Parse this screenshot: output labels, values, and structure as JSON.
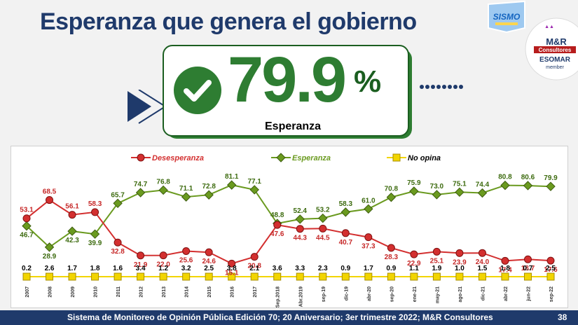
{
  "page": {
    "title": "Esperanza que genera el gobierno",
    "footer": "Sistema de Monitoreo de Opinión Pública Edición 70; 20 Aniversario; 3er trimestre 2022; M&R Consultores",
    "page_number": "38"
  },
  "hero": {
    "value": "79.9",
    "unit": "%",
    "label": "Esperanza"
  },
  "logos": {
    "sismo": "SISMO",
    "mr_line1": "M&R",
    "mr_line2": "Consultores",
    "esomar_line1": "ESOMAR",
    "esomar_line2": "member"
  },
  "colors": {
    "desesperanza": "#d32f2f",
    "esperanza": "#6a9a1f",
    "no_opina": "#f2d500",
    "navy": "#1f3a6b",
    "green": "#2e7d32"
  },
  "chart_data": {
    "type": "line",
    "categories": [
      "2007",
      "2008",
      "2009",
      "2010",
      "2011",
      "2012",
      "2013",
      "2014",
      "2015",
      "2016",
      "2017",
      "Sep.2018",
      "Abr.2019",
      "sep-19",
      "dic-19",
      "abr-20",
      "sep-20",
      "ene-21",
      "may-21",
      "ago-21",
      "dic-21",
      "abr-22",
      "jun-22",
      "sep-22"
    ],
    "series": [
      {
        "name": "Desesperanza",
        "color": "#d32f2f",
        "marker": "circle",
        "values": [
          53.1,
          68.5,
          56.1,
          58.3,
          32.8,
          21.9,
          22.0,
          25.6,
          24.6,
          15.1,
          20.8,
          47.6,
          44.3,
          44.5,
          40.7,
          37.3,
          28.3,
          22.9,
          25.1,
          23.9,
          24.0,
          17.4,
          18.7,
          17.6
        ]
      },
      {
        "name": "Esperanza",
        "color": "#6a9a1f",
        "marker": "diamond",
        "values": [
          46.7,
          28.9,
          42.3,
          39.9,
          65.7,
          74.7,
          76.8,
          71.1,
          72.8,
          81.1,
          77.1,
          48.8,
          52.4,
          53.2,
          58.3,
          61.0,
          70.8,
          75.9,
          73.0,
          75.1,
          74.4,
          80.8,
          80.6,
          79.9
        ]
      },
      {
        "name": "No opina",
        "color": "#f2d500",
        "marker": "square",
        "values": [
          0.2,
          2.6,
          1.7,
          1.8,
          1.6,
          3.4,
          1.2,
          3.2,
          2.5,
          3.8,
          2.1,
          3.6,
          3.3,
          2.3,
          0.9,
          1.7,
          0.9,
          1.1,
          1.9,
          1.0,
          1.5,
          1.8,
          0.7,
          2.5
        ]
      }
    ],
    "labels": {
      "Desesperanza": [
        "53.1",
        "68.5",
        "56.1",
        "58.3",
        "32.8",
        "21.9",
        "22.0",
        "25.6",
        "24.6",
        "15.1",
        "20.8",
        "47.6",
        "44.3",
        "44.5",
        "40.7",
        "37.3",
        "28.3",
        "22.9",
        "25.1",
        "23.9",
        "24.0",
        "17.4",
        "18.7",
        "17.6"
      ],
      "Esperanza": [
        "46.7",
        "28.9",
        "42.3",
        "39.9",
        "65.7",
        "74.7",
        "76.8",
        "71.1",
        "72.8",
        "81.1",
        "77.1",
        "48.8",
        "52.4",
        "53.2",
        "58.3",
        "61.0",
        "70.8",
        "75.9",
        "73.0",
        "75.1",
        "74.4",
        "80.8",
        "80.6",
        "79.9"
      ],
      "No opina": [
        "0.2",
        "2.6",
        "1.7",
        "1.8",
        "1.6",
        "3.4",
        "1.2",
        "3.2",
        "2.5",
        "3.8",
        "2.1",
        "3.6",
        "3.3",
        "2.3",
        "0.9",
        "1.7",
        "0.9",
        "1.1",
        "1.9",
        "1.0",
        "1.5",
        "1.8",
        "0.7",
        "2.5"
      ]
    },
    "legend": [
      "Desesperanza",
      "Esperanza",
      "No opina"
    ],
    "legend_position": "top",
    "ylim": [
      0,
      90
    ],
    "grid": false
  }
}
